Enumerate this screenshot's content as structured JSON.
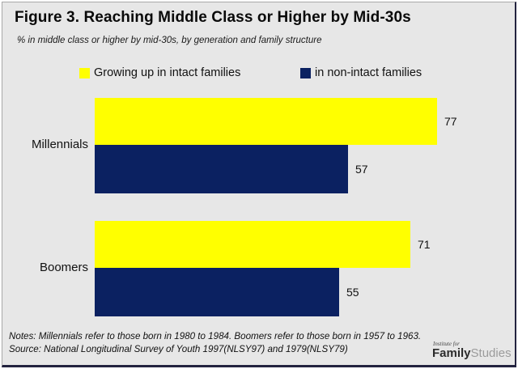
{
  "title": "Figure 3. Reaching Middle Class or Higher by Mid-30s",
  "subtitle": "% in middle class or higher by mid-30s, by generation and family structure",
  "chart_data": {
    "type": "bar",
    "orientation": "horizontal",
    "categories": [
      "Millennials",
      "Boomers"
    ],
    "series": [
      {
        "name": "Growing up in intact families",
        "color": "#FFFF00",
        "values": [
          77,
          71
        ]
      },
      {
        "name": "in non-intact families",
        "color": "#0B2161",
        "values": [
          57,
          55
        ]
      }
    ],
    "value_labels": true,
    "xlim": [
      0,
      81
    ],
    "legend_position": "top",
    "grid": false
  },
  "notes": "Notes: Millennials refer to those born in 1980 to 1984. Boomers refer to those born in 1957 to 1963. Source: National Longitudinal Survey of Youth 1997(NLSY97) and 1979(NLSY79)",
  "logo": {
    "top": "Institute for",
    "family": "Family",
    "studies": "Studies"
  },
  "colors": {
    "background": "#E7E7E7",
    "intact_bar": "#FFFF00",
    "non_intact_bar": "#0B2161"
  }
}
